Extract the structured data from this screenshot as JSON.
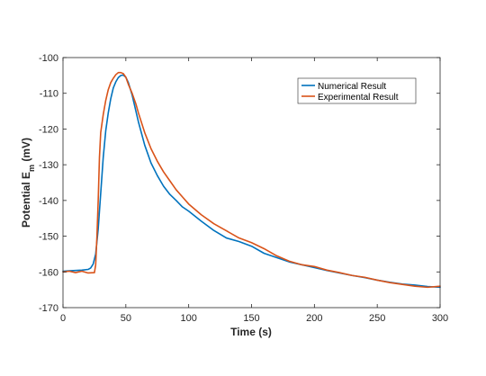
{
  "chart_data": {
    "type": "line",
    "xlabel": "Time (s)",
    "ylabel_main": "Potential E",
    "ylabel_sub": "m",
    "ylabel_unit": " (mV)",
    "xlim": [
      0,
      300
    ],
    "ylim": [
      -170,
      -100
    ],
    "xticks": [
      0,
      50,
      100,
      150,
      200,
      250,
      300
    ],
    "yticks": [
      -100,
      -110,
      -120,
      -130,
      -140,
      -150,
      -160,
      -170
    ],
    "grid": false,
    "legend_position": "top-right",
    "series": [
      {
        "name": "Numerical Result",
        "color": "#0072BD",
        "x": [
          0,
          5,
          10,
          15,
          20,
          22,
          24,
          26,
          28,
          30,
          32,
          34,
          36,
          38,
          40,
          42,
          44,
          46,
          48,
          50,
          52,
          55,
          58,
          60,
          65,
          70,
          75,
          80,
          85,
          90,
          95,
          100,
          110,
          120,
          130,
          140,
          150,
          160,
          170,
          180,
          190,
          200,
          210,
          220,
          230,
          240,
          250,
          260,
          270,
          280,
          290,
          300
        ],
        "y": [
          -159.8,
          -159.7,
          -159.6,
          -159.5,
          -159.3,
          -158.9,
          -157.8,
          -155.0,
          -148.0,
          -138.0,
          -128.0,
          -120.5,
          -115.5,
          -111.5,
          -108.5,
          -106.8,
          -105.6,
          -105.0,
          -104.9,
          -105.5,
          -107.0,
          -110.5,
          -115.0,
          -118.0,
          -124.5,
          -129.5,
          -133.0,
          -136.0,
          -138.3,
          -140.0,
          -141.8,
          -143.0,
          -145.8,
          -148.4,
          -150.5,
          -151.5,
          -152.8,
          -154.8,
          -156.0,
          -157.2,
          -158.0,
          -158.8,
          -159.6,
          -160.3,
          -161.0,
          -161.6,
          -162.3,
          -162.9,
          -163.4,
          -163.7,
          -164.1,
          -164.3
        ]
      },
      {
        "name": "Experimental Result",
        "color": "#D95319",
        "x": [
          0,
          5,
          10,
          15,
          20,
          25,
          26,
          27,
          28,
          29,
          30,
          32,
          34,
          36,
          38,
          40,
          42,
          44,
          46,
          48,
          50,
          52,
          55,
          58,
          60,
          65,
          70,
          75,
          80,
          85,
          90,
          95,
          100,
          110,
          120,
          130,
          140,
          150,
          160,
          170,
          180,
          190,
          200,
          210,
          220,
          230,
          240,
          250,
          260,
          270,
          280,
          290,
          300
        ],
        "y": [
          -160.0,
          -159.8,
          -160.2,
          -159.8,
          -160.3,
          -160.2,
          -158.0,
          -150.0,
          -140.0,
          -128.0,
          -121.0,
          -116.0,
          -112.0,
          -109.0,
          -107.0,
          -105.8,
          -104.8,
          -104.2,
          -104.2,
          -104.5,
          -105.5,
          -107.5,
          -110.0,
          -113.0,
          -115.5,
          -121.0,
          -125.5,
          -129.0,
          -132.0,
          -134.5,
          -137.0,
          -139.0,
          -141.0,
          -144.0,
          -146.5,
          -148.5,
          -150.5,
          -151.8,
          -153.5,
          -155.5,
          -157.0,
          -158.0,
          -158.5,
          -159.5,
          -160.2,
          -161.0,
          -161.5,
          -162.3,
          -163.0,
          -163.5,
          -164.0,
          -164.3,
          -164.0
        ]
      }
    ]
  }
}
